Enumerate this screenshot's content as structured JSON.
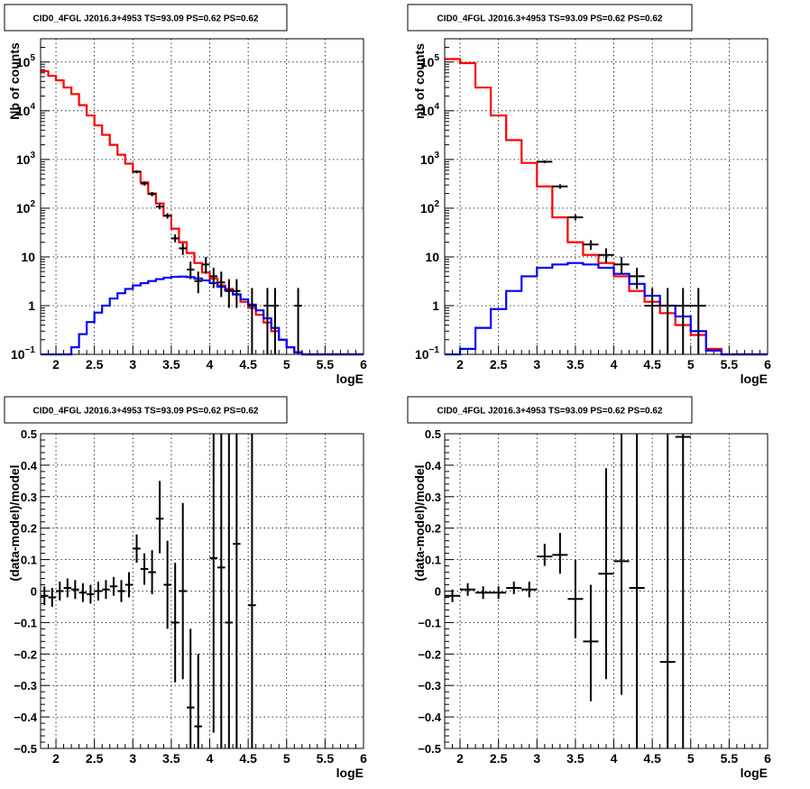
{
  "chart_data": [
    {
      "id": "top-left",
      "type": "line",
      "title": "CID0_4FGL J2016.3+4953 TS=93.09 PS=0.62 PS=0.62",
      "xlabel": "logE",
      "ylabel": "Nb of counts",
      "xlim": [
        1.8,
        6.0
      ],
      "ylim": [
        0.1,
        300000
      ],
      "yscale": "log",
      "grid": true,
      "xticks": [
        "2",
        "2.5",
        "3",
        "3.5",
        "4",
        "4.5",
        "5",
        "5.5",
        "6"
      ],
      "yticks": [
        {
          "v": 0.1,
          "mant": "10",
          "exp": "−1"
        },
        {
          "v": 1,
          "mant": "1",
          "exp": ""
        },
        {
          "v": 10,
          "mant": "10",
          "exp": ""
        },
        {
          "v": 100,
          "mant": "10",
          "exp": "2"
        },
        {
          "v": 1000,
          "mant": "10",
          "exp": "3"
        },
        {
          "v": 10000,
          "mant": "10",
          "exp": "4"
        },
        {
          "v": 100000,
          "mant": "10",
          "exp": "5"
        }
      ],
      "bin_width": 0.1,
      "x": [
        1.85,
        1.95,
        2.05,
        2.15,
        2.25,
        2.35,
        2.45,
        2.55,
        2.65,
        2.75,
        2.85,
        2.95,
        3.05,
        3.15,
        3.25,
        3.35,
        3.45,
        3.55,
        3.65,
        3.75,
        3.85,
        3.95,
        4.05,
        4.15,
        4.25,
        4.35,
        4.45,
        4.55,
        4.65,
        4.75,
        4.85,
        4.95,
        5.05,
        5.15,
        5.25,
        5.35,
        5.45,
        5.55,
        5.65,
        5.75,
        5.85,
        5.95
      ],
      "series": [
        {
          "color": "#ff0000",
          "values": [
            65000,
            52000,
            42000,
            30000,
            22000,
            13000,
            8000,
            5000,
            3200,
            2000,
            1250,
            820,
            560,
            340,
            200,
            125,
            70,
            38,
            20,
            12,
            7.5,
            4.8,
            3.6,
            2.6,
            2.2,
            1.7,
            1.2,
            0.9,
            0.65,
            0.45,
            0.3,
            0.2,
            0.14,
            0.11,
            0.1,
            0.1,
            0.1,
            0.1,
            0.1,
            0.1,
            0.1,
            0.1
          ]
        },
        {
          "color": "#0000ff",
          "values": [
            0.1,
            0.1,
            0.1,
            0.1,
            0.14,
            0.26,
            0.46,
            0.72,
            1.0,
            1.4,
            1.8,
            2.2,
            2.6,
            2.9,
            3.2,
            3.5,
            3.75,
            3.9,
            3.95,
            3.85,
            3.6,
            3.3,
            2.9,
            2.45,
            2.05,
            1.7,
            1.35,
            1.05,
            0.8,
            0.55,
            0.35,
            0.2,
            0.14,
            0.11,
            0.1,
            0.1,
            0.1,
            0.1,
            0.1,
            0.1,
            0.1,
            0.1
          ]
        }
      ],
      "points": [
        {
          "x": 3.05,
          "y": 560,
          "lo": 520,
          "hi": 600
        },
        {
          "x": 3.15,
          "y": 320,
          "lo": 290,
          "hi": 350
        },
        {
          "x": 3.25,
          "y": 195,
          "lo": 175,
          "hi": 215
        },
        {
          "x": 3.35,
          "y": 108,
          "lo": 95,
          "hi": 121
        },
        {
          "x": 3.45,
          "y": 70,
          "lo": 61,
          "hi": 79
        },
        {
          "x": 3.55,
          "y": 24,
          "lo": 20,
          "hi": 29
        },
        {
          "x": 3.65,
          "y": 15,
          "lo": 11,
          "hi": 19
        },
        {
          "x": 3.75,
          "y": 5.5,
          "lo": 3.5,
          "hi": 8
        },
        {
          "x": 3.85,
          "y": 3.2,
          "lo": 1.8,
          "hi": 5
        },
        {
          "x": 3.95,
          "y": 7,
          "lo": 4.5,
          "hi": 10
        },
        {
          "x": 4.05,
          "y": 4,
          "lo": 2.3,
          "hi": 6
        },
        {
          "x": 4.15,
          "y": 3,
          "lo": 1.5,
          "hi": 5
        },
        {
          "x": 4.25,
          "y": 2,
          "lo": 0.9,
          "hi": 3.5
        },
        {
          "x": 4.35,
          "y": 2,
          "lo": 0.9,
          "hi": 3.5
        },
        {
          "x": 4.55,
          "y": 1,
          "lo": 0.1,
          "hi": 2.3
        },
        {
          "x": 4.75,
          "y": 1,
          "lo": 0.1,
          "hi": 2.3
        },
        {
          "x": 4.85,
          "y": 1,
          "lo": 0.1,
          "hi": 2.3
        },
        {
          "x": 5.15,
          "y": 1,
          "lo": 0.1,
          "hi": 2.3
        }
      ]
    },
    {
      "id": "top-right",
      "type": "line",
      "title": "CID0_4FGL J2016.3+4953 TS=93.09 PS=0.62 PS=0.62",
      "xlabel": "logE",
      "ylabel": "nb of counts",
      "xlim": [
        1.8,
        6.0
      ],
      "ylim": [
        0.1,
        300000
      ],
      "yscale": "log",
      "grid": true,
      "xticks": [
        "2",
        "2.5",
        "3",
        "3.5",
        "4",
        "4.5",
        "5",
        "5.5",
        "6"
      ],
      "yticks": [
        {
          "v": 0.1,
          "mant": "10",
          "exp": "−1"
        },
        {
          "v": 1,
          "mant": "1",
          "exp": ""
        },
        {
          "v": 10,
          "mant": "10",
          "exp": ""
        },
        {
          "v": 100,
          "mant": "10",
          "exp": "2"
        },
        {
          "v": 1000,
          "mant": "10",
          "exp": "3"
        },
        {
          "v": 10000,
          "mant": "10",
          "exp": "4"
        },
        {
          "v": 100000,
          "mant": "10",
          "exp": "5"
        }
      ],
      "bin_width": 0.2,
      "x": [
        1.9,
        2.1,
        2.3,
        2.5,
        2.7,
        2.9,
        3.1,
        3.3,
        3.5,
        3.7,
        3.9,
        4.1,
        4.3,
        4.5,
        4.7,
        4.9,
        5.1,
        5.3,
        5.5,
        5.7,
        5.9
      ],
      "series": [
        {
          "color": "#ff0000",
          "values": [
            115000,
            95000,
            30000,
            8000,
            2500,
            850,
            280,
            65,
            20,
            11,
            7.5,
            4,
            2,
            1.2,
            0.7,
            0.4,
            0.25,
            0.13,
            0.1,
            0.1,
            0.1
          ]
        },
        {
          "color": "#0000ff",
          "values": [
            0.1,
            0.13,
            0.35,
            0.85,
            2,
            4,
            6,
            7,
            7.5,
            7,
            6,
            4.5,
            2.8,
            1.6,
            1,
            0.6,
            0.3,
            0.12,
            0.1,
            0.1,
            0.1
          ]
        }
      ],
      "points": [
        {
          "x": 3.1,
          "y": 900,
          "lo": 840,
          "hi": 960
        },
        {
          "x": 3.3,
          "y": 280,
          "lo": 250,
          "hi": 310
        },
        {
          "x": 3.5,
          "y": 65,
          "lo": 56,
          "hi": 74
        },
        {
          "x": 3.7,
          "y": 18,
          "lo": 14,
          "hi": 22
        },
        {
          "x": 3.9,
          "y": 11,
          "lo": 7.5,
          "hi": 15
        },
        {
          "x": 4.1,
          "y": 7,
          "lo": 4.5,
          "hi": 10
        },
        {
          "x": 4.3,
          "y": 4,
          "lo": 2.2,
          "hi": 6
        },
        {
          "x": 4.5,
          "y": 1,
          "lo": 0.1,
          "hi": 2.3
        },
        {
          "x": 4.7,
          "y": 1,
          "lo": 0.1,
          "hi": 2.3
        },
        {
          "x": 4.9,
          "y": 1,
          "lo": 0.1,
          "hi": 2.3
        },
        {
          "x": 5.1,
          "y": 1,
          "lo": 0.1,
          "hi": 2.3
        }
      ]
    },
    {
      "id": "bottom-left",
      "type": "scatter",
      "title": "CID0_4FGL J2016.3+4953 TS=93.09 PS=0.62 PS=0.62",
      "xlabel": "logE",
      "ylabel": "(data-model)/model",
      "xlim": [
        1.8,
        6.0
      ],
      "ylim": [
        -0.5,
        0.5
      ],
      "yscale": "linear",
      "grid": true,
      "xticks": [
        "2",
        "2.5",
        "3",
        "3.5",
        "4",
        "4.5",
        "5",
        "5.5",
        "6"
      ],
      "yticks": [
        "−0.5",
        "−0.4",
        "−0.3",
        "−0.2",
        "−0.1",
        "0",
        "0.1",
        "0.2",
        "0.3",
        "0.4",
        "0.5"
      ],
      "bin_width": 0.1,
      "points": [
        {
          "x": 1.85,
          "y": -0.015,
          "lo": -0.045,
          "hi": 0.015
        },
        {
          "x": 1.95,
          "y": -0.02,
          "lo": -0.05,
          "hi": 0.01
        },
        {
          "x": 2.05,
          "y": 0.0,
          "lo": -0.03,
          "hi": 0.03
        },
        {
          "x": 2.15,
          "y": 0.01,
          "lo": -0.02,
          "hi": 0.04
        },
        {
          "x": 2.25,
          "y": 0.005,
          "lo": -0.025,
          "hi": 0.035
        },
        {
          "x": 2.35,
          "y": -0.005,
          "lo": -0.035,
          "hi": 0.025
        },
        {
          "x": 2.45,
          "y": -0.01,
          "lo": -0.04,
          "hi": 0.02
        },
        {
          "x": 2.55,
          "y": 0.0,
          "lo": -0.03,
          "hi": 0.03
        },
        {
          "x": 2.65,
          "y": 0.005,
          "lo": -0.025,
          "hi": 0.035
        },
        {
          "x": 2.75,
          "y": 0.015,
          "lo": -0.015,
          "hi": 0.045
        },
        {
          "x": 2.85,
          "y": 0.0,
          "lo": -0.035,
          "hi": 0.035
        },
        {
          "x": 2.95,
          "y": 0.02,
          "lo": -0.02,
          "hi": 0.06
        },
        {
          "x": 3.05,
          "y": 0.135,
          "lo": 0.09,
          "hi": 0.18
        },
        {
          "x": 3.15,
          "y": 0.07,
          "lo": 0.02,
          "hi": 0.12
        },
        {
          "x": 3.25,
          "y": 0.06,
          "lo": -0.01,
          "hi": 0.13
        },
        {
          "x": 3.35,
          "y": 0.23,
          "lo": 0.12,
          "hi": 0.35
        },
        {
          "x": 3.45,
          "y": 0.02,
          "lo": -0.12,
          "hi": 0.16
        },
        {
          "x": 3.55,
          "y": -0.1,
          "lo": -0.29,
          "hi": 0.09
        },
        {
          "x": 3.65,
          "y": 0.0,
          "lo": -0.28,
          "hi": 0.28
        },
        {
          "x": 3.75,
          "y": -0.37,
          "lo": -0.5,
          "hi": -0.12
        },
        {
          "x": 3.85,
          "y": -0.43,
          "lo": -0.5,
          "hi": -0.2
        },
        {
          "x": 4.05,
          "y": 0.105,
          "lo": -0.45,
          "hi": 0.5
        },
        {
          "x": 4.15,
          "y": 0.075,
          "lo": -0.5,
          "hi": 0.5
        },
        {
          "x": 4.25,
          "y": -0.1,
          "lo": -0.5,
          "hi": 0.5
        },
        {
          "x": 4.35,
          "y": 0.15,
          "lo": -0.5,
          "hi": 0.5
        },
        {
          "x": 4.55,
          "y": -0.045,
          "lo": -0.5,
          "hi": 0.5
        }
      ]
    },
    {
      "id": "bottom-right",
      "type": "scatter",
      "title": "CID0_4FGL J2016.3+4953 TS=93.09 PS=0.62 PS=0.62",
      "xlabel": "logE",
      "ylabel": "(data-model)/model",
      "xlim": [
        1.8,
        6.0
      ],
      "ylim": [
        -0.5,
        0.5
      ],
      "yscale": "linear",
      "grid": true,
      "xticks": [
        "2",
        "2.5",
        "3",
        "3.5",
        "4",
        "4.5",
        "5",
        "5.5",
        "6"
      ],
      "yticks": [
        "−0.5",
        "−0.4",
        "−0.3",
        "−0.2",
        "−0.1",
        "0",
        "0.1",
        "0.2",
        "0.3",
        "0.4",
        "0.5"
      ],
      "bin_width": 0.2,
      "points": [
        {
          "x": 1.9,
          "y": -0.015,
          "lo": -0.035,
          "hi": 0.005
        },
        {
          "x": 2.1,
          "y": 0.005,
          "lo": -0.015,
          "hi": 0.025
        },
        {
          "x": 2.3,
          "y": -0.005,
          "lo": -0.025,
          "hi": 0.015
        },
        {
          "x": 2.5,
          "y": -0.005,
          "lo": -0.025,
          "hi": 0.015
        },
        {
          "x": 2.7,
          "y": 0.01,
          "lo": -0.01,
          "hi": 0.03
        },
        {
          "x": 2.9,
          "y": 0.005,
          "lo": -0.02,
          "hi": 0.03
        },
        {
          "x": 3.1,
          "y": 0.11,
          "lo": 0.08,
          "hi": 0.15
        },
        {
          "x": 3.3,
          "y": 0.115,
          "lo": 0.055,
          "hi": 0.185
        },
        {
          "x": 3.5,
          "y": -0.025,
          "lo": -0.15,
          "hi": 0.1
        },
        {
          "x": 3.7,
          "y": -0.16,
          "lo": -0.35,
          "hi": 0.02
        },
        {
          "x": 3.9,
          "y": 0.055,
          "lo": -0.28,
          "hi": 0.39
        },
        {
          "x": 4.1,
          "y": 0.095,
          "lo": -0.33,
          "hi": 0.5
        },
        {
          "x": 4.3,
          "y": 0.01,
          "lo": -0.5,
          "hi": 0.5
        },
        {
          "x": 4.7,
          "y": -0.225,
          "lo": -0.5,
          "hi": 0.5
        },
        {
          "x": 4.9,
          "y": 0.49,
          "lo": -0.5,
          "hi": 0.5
        }
      ]
    }
  ]
}
